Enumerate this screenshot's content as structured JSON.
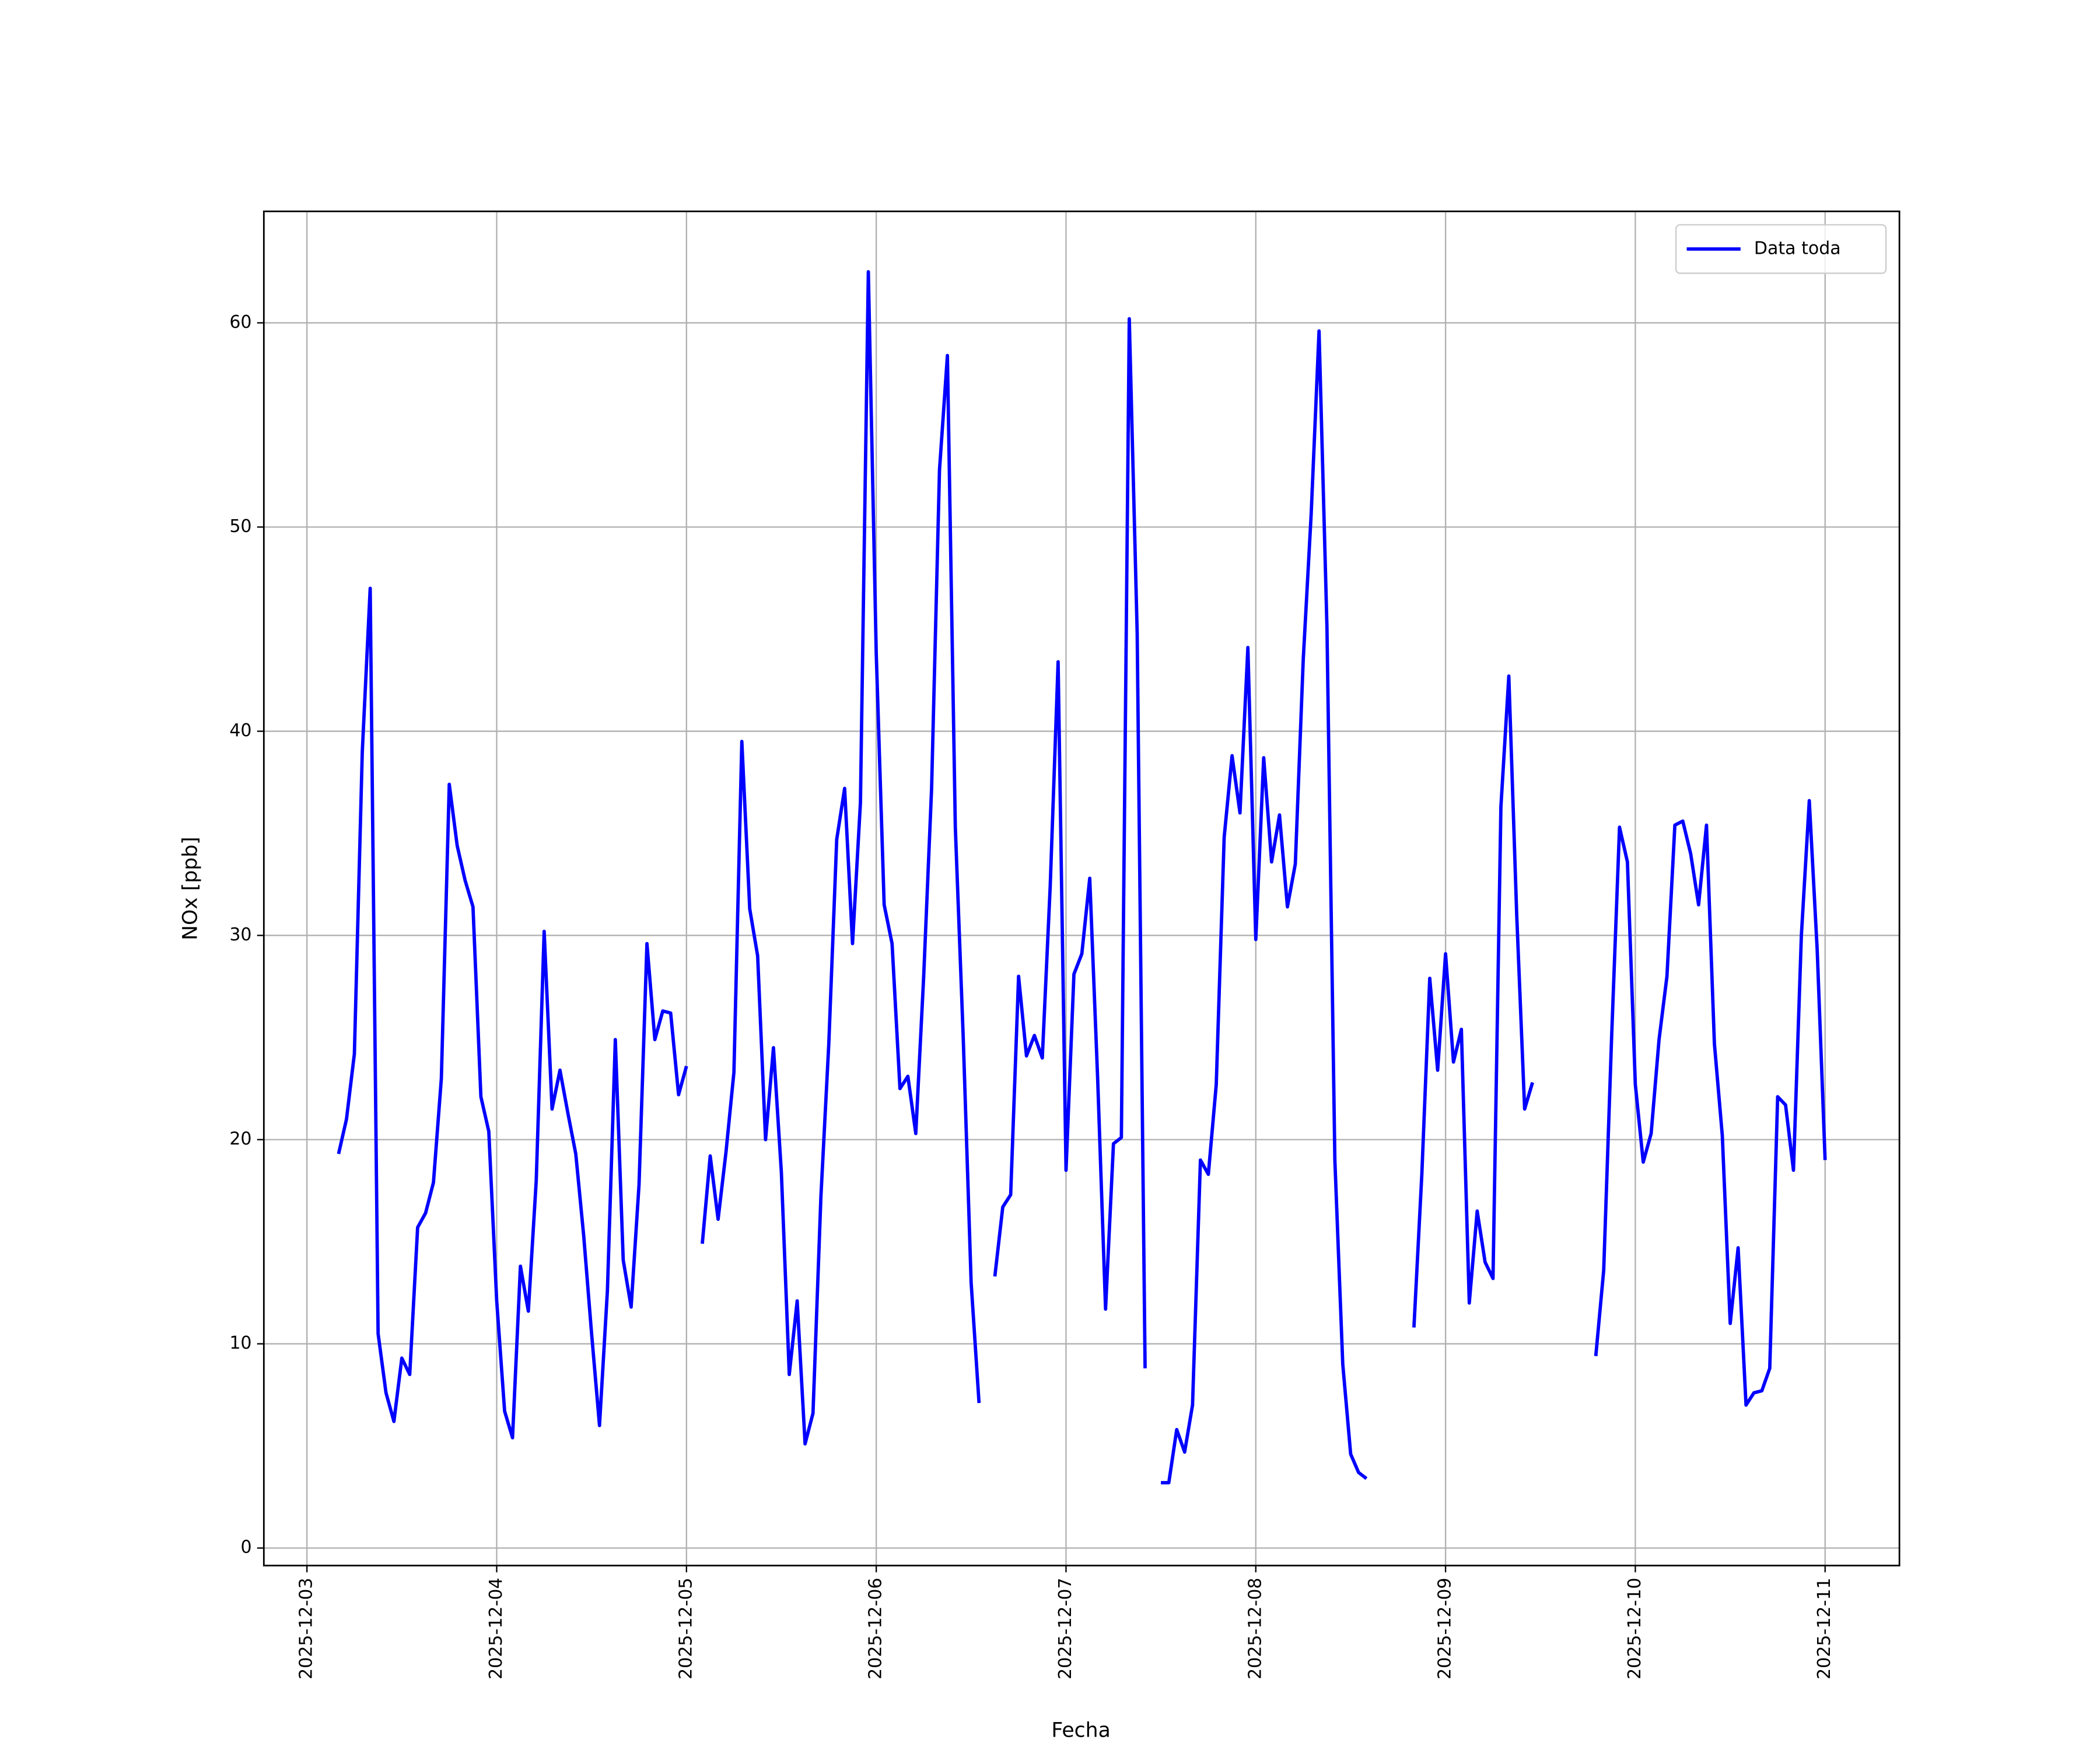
{
  "chart_data": {
    "type": "line",
    "xlabel": "Fecha",
    "ylabel": "NOx [ppb]",
    "x": [
      4,
      5,
      6,
      7,
      8,
      9,
      10,
      11,
      12,
      13,
      14,
      15,
      16,
      17,
      18,
      19,
      20,
      21,
      22,
      23,
      24,
      25,
      26,
      27,
      28,
      29,
      30,
      31,
      32,
      33,
      34,
      35,
      36,
      37,
      38,
      39,
      40,
      41,
      42,
      43,
      44,
      45,
      46,
      47,
      48,
      49,
      50,
      51,
      52,
      53,
      54,
      55,
      56,
      57,
      58,
      59,
      60,
      61,
      62,
      63,
      64,
      65,
      66,
      67,
      68,
      69,
      70,
      71,
      72,
      73,
      74,
      75,
      76,
      77,
      78,
      79,
      80,
      81,
      82,
      83,
      84,
      85,
      86,
      87,
      88,
      89,
      90,
      91,
      92,
      93,
      94,
      95,
      96,
      97,
      98,
      99,
      100,
      101,
      102,
      103,
      104,
      105,
      106,
      107,
      108,
      109,
      110,
      111,
      112,
      113,
      114,
      115,
      116,
      117,
      118,
      119,
      120,
      121,
      122,
      123,
      124,
      125,
      126,
      127,
      128,
      129,
      130,
      131,
      132,
      133,
      134,
      135,
      136,
      137,
      138,
      139,
      140,
      141,
      142,
      143,
      144,
      145,
      146,
      147,
      148,
      149,
      150,
      151,
      152,
      153,
      154,
      155,
      156,
      157,
      158,
      159,
      160,
      161,
      162,
      163,
      164,
      165,
      166,
      167,
      168,
      169,
      170,
      171,
      172,
      173,
      174,
      175,
      176,
      177,
      178,
      179,
      180,
      181,
      182,
      183,
      184,
      185,
      186,
      187,
      188,
      189,
      190,
      191,
      192
    ],
    "series": [
      {
        "name": "Data toda",
        "color": "#0000ff",
        "values": [
          19.3,
          21,
          24.2,
          39,
          47,
          10.5,
          7.6,
          6.2,
          9.3,
          8.5,
          15.7,
          16.4,
          17.9,
          23,
          37.4,
          34.4,
          32.7,
          31.4,
          22.1,
          20.4,
          12.1,
          6.7,
          5.4,
          13.8,
          11.6,
          18,
          30.2,
          21.5,
          23.4,
          21.3,
          19.3,
          15.3,
          10.5,
          6,
          12.6,
          24.9,
          14.1,
          11.8,
          17.8,
          29.6,
          24.9,
          26.3,
          26.2,
          22.2,
          23.6,
          null,
          14.9,
          19.2,
          16.1,
          19.4,
          23.3,
          39.5,
          31.3,
          29,
          20,
          24.5,
          18.4,
          8.5,
          12.1,
          5.1,
          6.6,
          17.2,
          24.7,
          34.7,
          37.2,
          29.6,
          36.5,
          62.5,
          43.8,
          31.5,
          29.6,
          22.5,
          23.1,
          20.3,
          28,
          37.2,
          52.8,
          58.4,
          35.3,
          25,
          13,
          7.1,
          null,
          13.3,
          16.7,
          17.3,
          28,
          24.1,
          25.1,
          24,
          32.4,
          43.4,
          18.5,
          28.1,
          29.1,
          32.8,
          23,
          11.7,
          19.8,
          20.1,
          60.2,
          44.8,
          8.8,
          null,
          3.2,
          3.2,
          5.8,
          4.7,
          7,
          19,
          18.3,
          22.7,
          34.8,
          38.8,
          36,
          44.1,
          29.8,
          38.7,
          33.6,
          35.9,
          31.4,
          33.5,
          43.5,
          50.6,
          59.6,
          45.1,
          19,
          9,
          4.6,
          3.7,
          3.4,
          null,
          null,
          null,
          null,
          null,
          10.8,
          18.3,
          27.9,
          23.4,
          29.1,
          23.8,
          25.4,
          12,
          16.5,
          14,
          13.2,
          36.3,
          42.7,
          31,
          21.5,
          22.8,
          null,
          null,
          null,
          null,
          null,
          null,
          null,
          9.4,
          13.6,
          25,
          35.3,
          33.6,
          22.7,
          18.9,
          20.3,
          24.9,
          28,
          35.4,
          35.6,
          34,
          31.5,
          35.4,
          24.7,
          20.2,
          11,
          14.7,
          7,
          7.6,
          7.7,
          8.8,
          22.1,
          21.7,
          18.5,
          30,
          36.6,
          29.3,
          19
        ]
      }
    ],
    "xlim": [
      -5.45,
      201.4
    ],
    "xticks": [
      {
        "value": 0,
        "label": "2025-12-03"
      },
      {
        "value": 24,
        "label": "2025-12-04"
      },
      {
        "value": 48,
        "label": "2025-12-05"
      },
      {
        "value": 72,
        "label": "2025-12-06"
      },
      {
        "value": 96,
        "label": "2025-12-07"
      },
      {
        "value": 120,
        "label": "2025-12-08"
      },
      {
        "value": 144,
        "label": "2025-12-09"
      },
      {
        "value": 168,
        "label": "2025-12-10"
      },
      {
        "value": 192,
        "label": "2025-12-11"
      }
    ],
    "ylim": [
      -0.86,
      65.46
    ],
    "yticks": [
      0,
      10,
      20,
      30,
      40,
      50,
      60
    ],
    "grid": true,
    "legend": "upper right"
  }
}
